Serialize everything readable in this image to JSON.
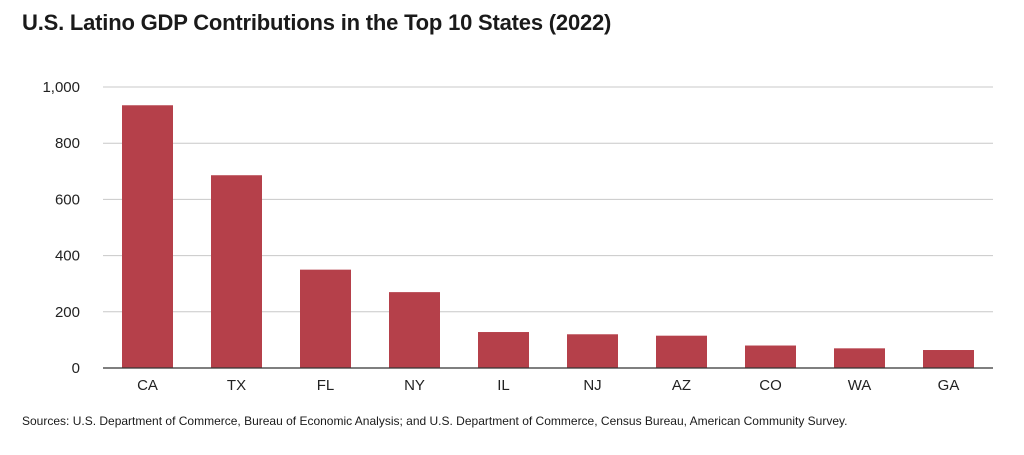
{
  "chart_data": {
    "type": "bar",
    "title": "U.S. Latino GDP Contributions in the Top 10 States (2022)",
    "xlabel": "",
    "ylabel": "",
    "categories": [
      "CA",
      "TX",
      "FL",
      "NY",
      "IL",
      "NJ",
      "AZ",
      "CO",
      "WA",
      "GA"
    ],
    "values": [
      935,
      686,
      350,
      270,
      128,
      120,
      115,
      80,
      70,
      64
    ],
    "ylim": [
      0,
      1000
    ],
    "yticks": [
      0,
      200,
      400,
      600,
      800,
      1000
    ],
    "ytick_labels": [
      "0",
      "200",
      "400",
      "600",
      "800",
      "1,000"
    ],
    "grid": true,
    "legend": "none",
    "bar_color": "#b5404a",
    "grid_color": "#c8c8c8",
    "axis_color": "#333333"
  },
  "source_note": "Sources: U.S. Department of Commerce, Bureau of Economic Analysis; and U.S. Department of Commerce, Census Bureau, American Community Survey."
}
